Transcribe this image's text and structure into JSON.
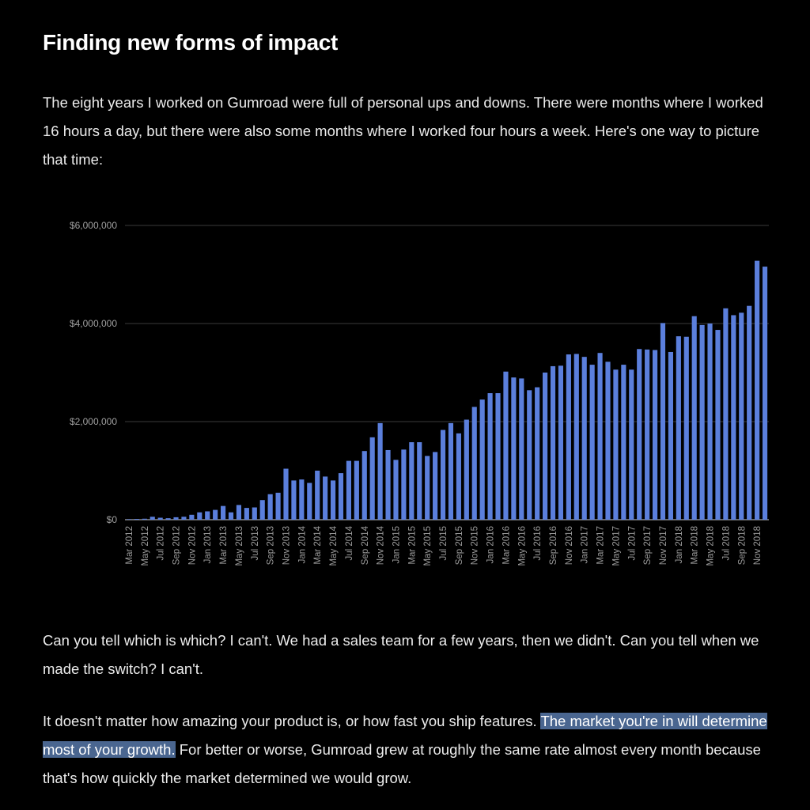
{
  "article": {
    "title": "Finding new forms of impact",
    "paragraph1": "The eight years I worked on Gumroad were full of personal ups and downs. There were months where I worked 16 hours a day, but there were also some months where I worked four hours a week. Here's one way to picture that time:",
    "paragraph2": "Can you tell which is which? I can't. We had a sales team for a few years, then we didn't. Can you tell when we made the switch? I can't.",
    "paragraph3_before": "It doesn't matter how amazing your product is, or how fast you ship features. ",
    "paragraph3_highlight": "The market you're in will determine most of your growth.",
    "paragraph3_after": " For better or worse, Gumroad grew at roughly the same rate almost every month because that's how quickly the market determined we would grow."
  },
  "colors": {
    "bar": "#5b7fdc",
    "grid": "#3a3a3a",
    "axis": "#8a8a8a",
    "highlight": "#4a6690"
  },
  "chart_data": {
    "type": "bar",
    "title": "",
    "xlabel": "",
    "ylabel": "",
    "ylim": [
      0,
      6000000
    ],
    "yticks": [
      0,
      2000000,
      4000000,
      6000000
    ],
    "ytick_labels": [
      "$0",
      "$2,000,000",
      "$4,000,000",
      "$6,000,000"
    ],
    "categories": [
      "Mar 2012",
      "Apr 2012",
      "May 2012",
      "Jun 2012",
      "Jul 2012",
      "Aug 2012",
      "Sep 2012",
      "Oct 2012",
      "Nov 2012",
      "Dec 2012",
      "Jan 2013",
      "Feb 2013",
      "Mar 2013",
      "Apr 2013",
      "May 2013",
      "Jun 2013",
      "Jul 2013",
      "Aug 2013",
      "Sep 2013",
      "Oct 2013",
      "Nov 2013",
      "Dec 2013",
      "Jan 2014",
      "Feb 2014",
      "Mar 2014",
      "Apr 2014",
      "May 2014",
      "Jun 2014",
      "Jul 2014",
      "Aug 2014",
      "Sep 2014",
      "Oct 2014",
      "Nov 2014",
      "Dec 2014",
      "Jan 2015",
      "Feb 2015",
      "Mar 2015",
      "Apr 2015",
      "May 2015",
      "Jun 2015",
      "Jul 2015",
      "Aug 2015",
      "Sep 2015",
      "Oct 2015",
      "Nov 2015",
      "Dec 2015",
      "Jan 2016",
      "Feb 2016",
      "Mar 2016",
      "Apr 2016",
      "May 2016",
      "Jun 2016",
      "Jul 2016",
      "Aug 2016",
      "Sep 2016",
      "Oct 2016",
      "Nov 2016",
      "Dec 2016",
      "Jan 2017",
      "Feb 2017",
      "Mar 2017",
      "Apr 2017",
      "May 2017",
      "Jun 2017",
      "Jul 2017",
      "Aug 2017",
      "Sep 2017",
      "Oct 2017",
      "Nov 2017",
      "Dec 2017",
      "Jan 2018",
      "Feb 2018",
      "Mar 2018",
      "Apr 2018",
      "May 2018",
      "Jun 2018",
      "Jul 2018",
      "Aug 2018",
      "Sep 2018",
      "Oct 2018",
      "Nov 2018",
      "Dec 2018"
    ],
    "x_tick_labels": [
      "Mar 2012",
      "May 2012",
      "Jul 2012",
      "Sep 2012",
      "Nov 2012",
      "Jan 2013",
      "Mar 2013",
      "May 2013",
      "Jul 2013",
      "Sep 2013",
      "Nov 2013",
      "Jan 2014",
      "Mar 2014",
      "May 2014",
      "Jul 2014",
      "Sep 2014",
      "Nov 2014",
      "Jan 2015",
      "Mar 2015",
      "May 2015",
      "Jul 2015",
      "Sep 2015",
      "Nov 2015",
      "Jan 2016",
      "Mar 2016",
      "May 2016",
      "Jul 2016",
      "Sep 2016",
      "Nov 2016",
      "Jan 2017",
      "Mar 2017",
      "May 2017",
      "Jul 2017",
      "Sep 2017",
      "Nov 2017",
      "Jan 2018",
      "Mar 2018",
      "May 2018",
      "Jul 2018",
      "Sep 2018",
      "Nov 2018"
    ],
    "values": [
      10000,
      15000,
      20000,
      60000,
      40000,
      30000,
      50000,
      60000,
      100000,
      150000,
      170000,
      200000,
      280000,
      150000,
      300000,
      240000,
      250000,
      400000,
      520000,
      550000,
      1040000,
      800000,
      820000,
      750000,
      1000000,
      880000,
      800000,
      950000,
      1200000,
      1200000,
      1400000,
      1680000,
      1970000,
      1420000,
      1220000,
      1430000,
      1580000,
      1580000,
      1300000,
      1380000,
      1830000,
      1970000,
      1760000,
      2040000,
      2300000,
      2450000,
      2580000,
      2580000,
      3020000,
      2900000,
      2880000,
      2640000,
      2700000,
      3000000,
      3130000,
      3140000,
      3370000,
      3380000,
      3320000,
      3160000,
      3400000,
      3220000,
      3060000,
      3160000,
      3060000,
      3480000,
      3470000,
      3460000,
      4010000,
      3420000,
      3740000,
      3730000,
      4150000,
      3970000,
      4000000,
      3870000,
      4310000,
      4170000,
      4220000,
      4360000,
      5280000,
      5160000
    ]
  }
}
